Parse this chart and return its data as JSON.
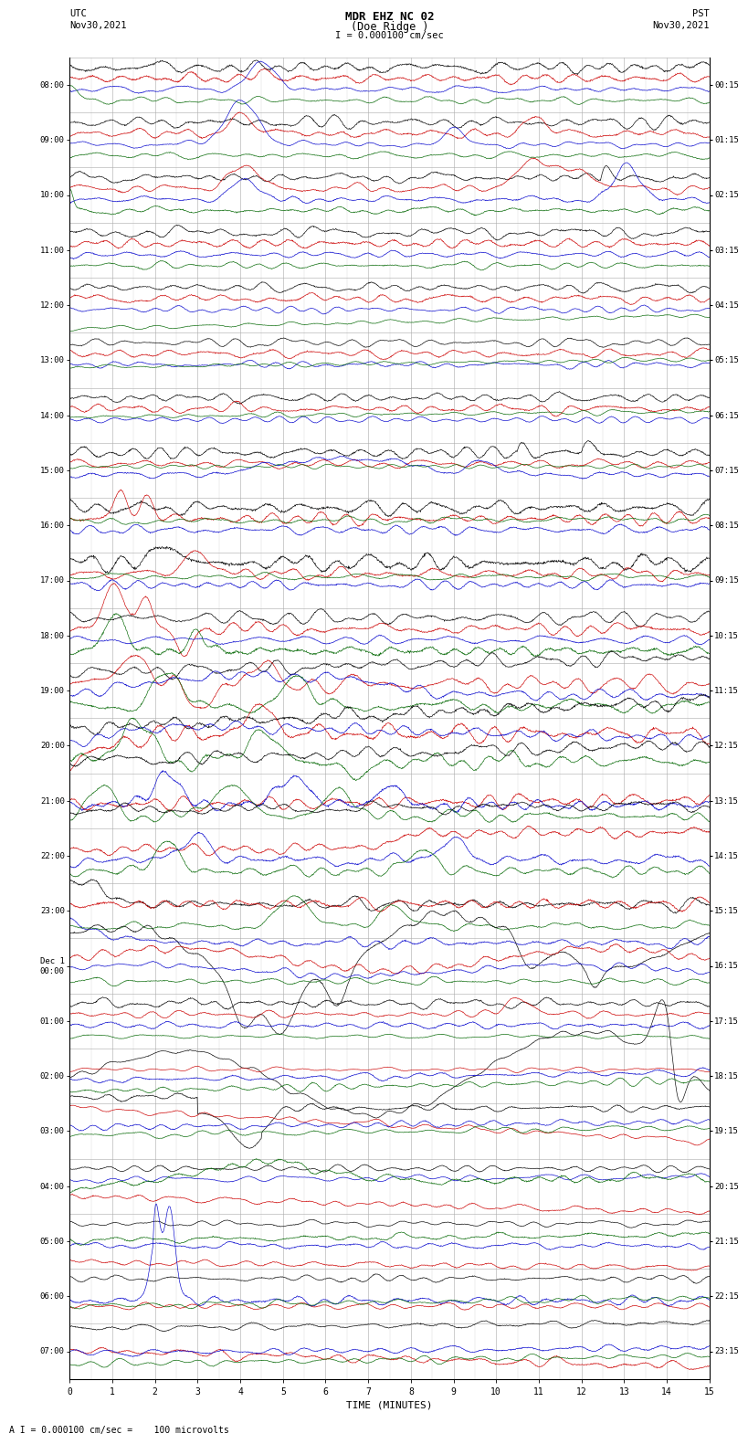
{
  "title_line1": "MDR EHZ NC 02",
  "title_line2": "(Doe Ridge )",
  "scale_label": "I = 0.000100 cm/sec",
  "left_label_line1": "UTC",
  "left_label_line2": "Nov30,2021",
  "right_label_line1": "PST",
  "right_label_line2": "Nov30,2021",
  "bottom_label": "TIME (MINUTES)",
  "scale_note": "A I = 0.000100 cm/sec =    100 microvolts",
  "utc_times": [
    "08:00",
    "09:00",
    "10:00",
    "11:00",
    "12:00",
    "13:00",
    "14:00",
    "15:00",
    "16:00",
    "17:00",
    "18:00",
    "19:00",
    "20:00",
    "21:00",
    "22:00",
    "23:00",
    "Dec 1\n00:00",
    "01:00",
    "02:00",
    "03:00",
    "04:00",
    "05:00",
    "06:00",
    "07:00"
  ],
  "pst_times": [
    "00:15",
    "01:15",
    "02:15",
    "03:15",
    "04:15",
    "05:15",
    "06:15",
    "07:15",
    "08:15",
    "09:15",
    "10:15",
    "11:15",
    "12:15",
    "13:15",
    "14:15",
    "15:15",
    "16:15",
    "17:15",
    "18:15",
    "19:15",
    "20:15",
    "21:15",
    "22:15",
    "23:15"
  ],
  "n_rows": 24,
  "x_min": 0,
  "x_max": 15,
  "x_ticks": [
    0,
    1,
    2,
    3,
    4,
    5,
    6,
    7,
    8,
    9,
    10,
    11,
    12,
    13,
    14,
    15
  ],
  "colors": {
    "black": "#000000",
    "red": "#cc0000",
    "green": "#006600",
    "blue": "#0000cc",
    "background": "#ffffff",
    "grid": "#aaaaaa"
  },
  "fig_width": 8.5,
  "fig_height": 16.13
}
